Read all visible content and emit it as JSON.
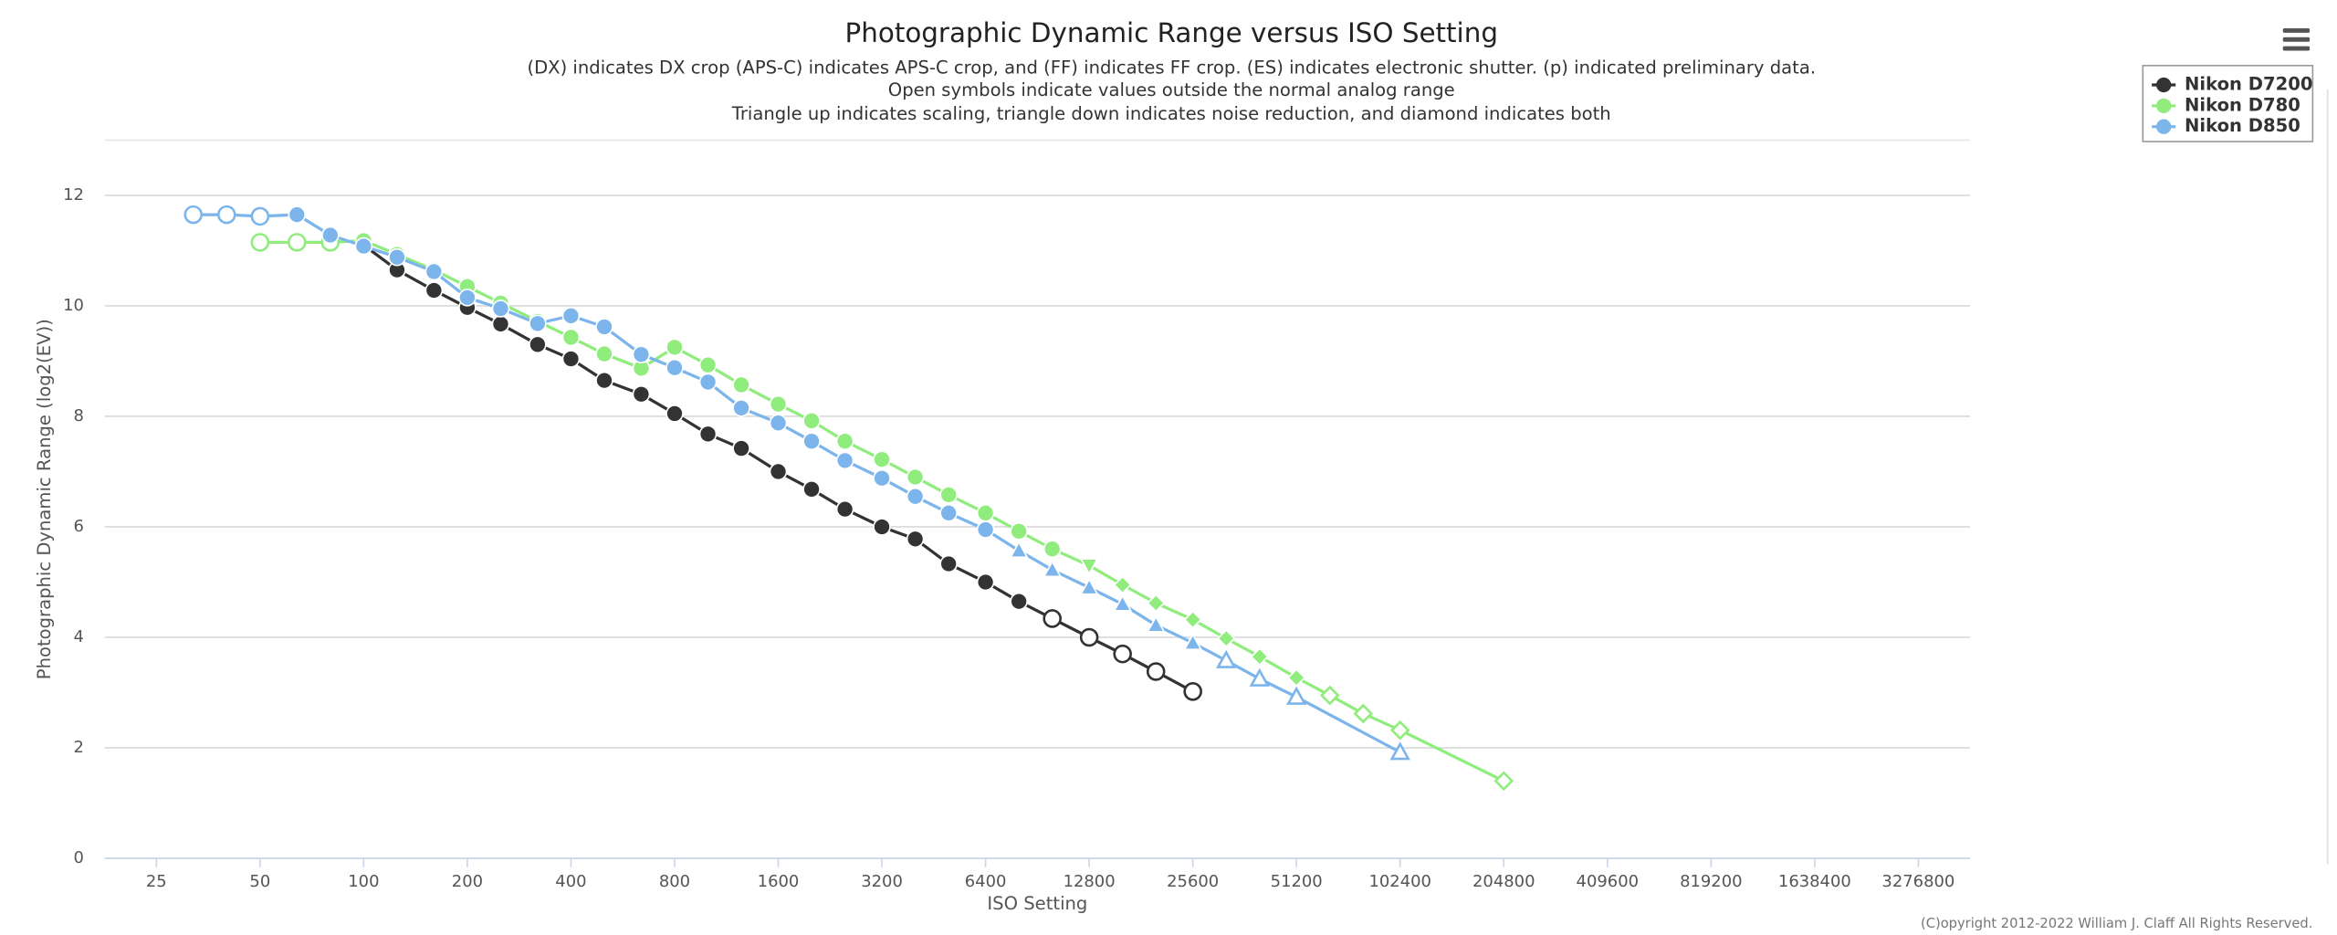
{
  "chart_data": {
    "type": "line",
    "title": "Photographic Dynamic Range versus ISO Setting",
    "subtitle": [
      "(DX) indicates DX crop (APS-C) indicates APS-C crop, and (FF) indicates FF crop. (ES) indicates electronic shutter. (p) indicated preliminary data.",
      "Open symbols indicate values outside the normal analog range",
      "Triangle up indicates scaling, triangle down indicates noise reduction, and diamond indicates both"
    ],
    "x_label": "ISO Setting",
    "y_label": "Photographic Dynamic Range (log2(EV))",
    "credits": "(C)opyright 2012-2022 William J. Claff All Rights Reserved.",
    "x_scale": "log",
    "xlim": [
      17.7,
      4630000
    ],
    "xticks": [
      25,
      50,
      100,
      200,
      400,
      800,
      1600,
      3200,
      6400,
      12800,
      25600,
      51200,
      102400,
      204800,
      409600,
      819200,
      1638400,
      3276800
    ],
    "ylim": [
      0,
      13
    ],
    "yticks": [
      0,
      2,
      4,
      6,
      8,
      10,
      12
    ],
    "grid": true,
    "legend_position": "top-right",
    "series": [
      {
        "name": "Nikon D7200",
        "color": "#333333",
        "x": [
          100,
          125,
          160,
          200,
          250,
          320,
          400,
          500,
          640,
          800,
          1000,
          1250,
          1600,
          2000,
          2500,
          3200,
          4000,
          5000,
          6400,
          8000,
          10000,
          12800,
          16000,
          20000,
          25600
        ],
        "values": [
          11.1,
          10.65,
          10.28,
          9.97,
          9.67,
          9.3,
          9.04,
          8.65,
          8.4,
          8.05,
          7.68,
          7.42,
          7.0,
          6.68,
          6.32,
          6.0,
          5.78,
          5.33,
          5.0,
          4.65,
          4.34,
          4.0,
          3.7,
          3.38,
          3.02
        ],
        "symbols": [
          "circle",
          "circle",
          "circle",
          "circle",
          "circle",
          "circle",
          "circle",
          "circle",
          "circle",
          "circle",
          "circle",
          "circle",
          "circle",
          "circle",
          "circle",
          "circle",
          "circle",
          "circle",
          "circle",
          "circle",
          "circle-open",
          "circle-open",
          "circle-open",
          "circle-open",
          "circle-open"
        ]
      },
      {
        "name": "Nikon D780",
        "color": "#90ed7d",
        "x": [
          50,
          64,
          80,
          100,
          125,
          160,
          200,
          250,
          320,
          400,
          500,
          640,
          800,
          1000,
          1250,
          1600,
          2000,
          2500,
          3200,
          4000,
          5000,
          6400,
          8000,
          10000,
          12800,
          16000,
          20000,
          25600,
          32000,
          40000,
          51200,
          64000,
          80000,
          102400,
          204800
        ],
        "values": [
          11.15,
          11.15,
          11.15,
          11.18,
          10.93,
          10.65,
          10.35,
          10.05,
          9.72,
          9.43,
          9.13,
          8.87,
          9.25,
          8.93,
          8.57,
          8.22,
          7.92,
          7.55,
          7.22,
          6.9,
          6.58,
          6.25,
          5.92,
          5.6,
          5.3,
          4.95,
          4.62,
          4.32,
          3.98,
          3.65,
          3.27,
          2.95,
          2.62,
          2.32,
          1.4
        ],
        "symbols": [
          "circle-open",
          "circle-open",
          "circle-open",
          "circle",
          "circle",
          "circle",
          "circle",
          "circle",
          "circle",
          "circle",
          "circle",
          "circle",
          "circle",
          "circle",
          "circle",
          "circle",
          "circle",
          "circle",
          "circle",
          "circle",
          "circle",
          "circle",
          "circle",
          "circle",
          "triangle-down",
          "diamond",
          "diamond",
          "diamond",
          "diamond",
          "diamond",
          "diamond",
          "diamond-open",
          "diamond-open",
          "diamond-open",
          "diamond-open"
        ]
      },
      {
        "name": "Nikon D850",
        "color": "#7cb5ec",
        "x": [
          32,
          40,
          50,
          64,
          80,
          100,
          125,
          160,
          200,
          250,
          320,
          400,
          500,
          640,
          800,
          1000,
          1250,
          1600,
          2000,
          2500,
          3200,
          4000,
          5000,
          6400,
          8000,
          10000,
          12800,
          16000,
          20000,
          25600,
          32000,
          40000,
          51200,
          102400
        ],
        "values": [
          11.65,
          11.65,
          11.62,
          11.65,
          11.28,
          11.08,
          10.88,
          10.62,
          10.15,
          9.95,
          9.68,
          9.82,
          9.62,
          9.12,
          8.88,
          8.62,
          8.15,
          7.88,
          7.55,
          7.2,
          6.88,
          6.55,
          6.25,
          5.95,
          5.57,
          5.22,
          4.9,
          4.6,
          4.22,
          3.9,
          3.58,
          3.25,
          2.92,
          1.92
        ],
        "symbols": [
          "circle-open",
          "circle-open",
          "circle-open",
          "circle",
          "circle",
          "circle",
          "circle",
          "circle",
          "circle",
          "circle",
          "circle",
          "circle",
          "circle",
          "circle",
          "circle",
          "circle",
          "circle",
          "circle",
          "circle",
          "circle",
          "circle",
          "circle",
          "circle",
          "circle",
          "triangle-up",
          "triangle-up",
          "triangle-up",
          "triangle-up",
          "triangle-up",
          "triangle-up",
          "triangle-up-open",
          "triangle-up-open",
          "triangle-up-open",
          "triangle-up-open"
        ]
      }
    ]
  }
}
